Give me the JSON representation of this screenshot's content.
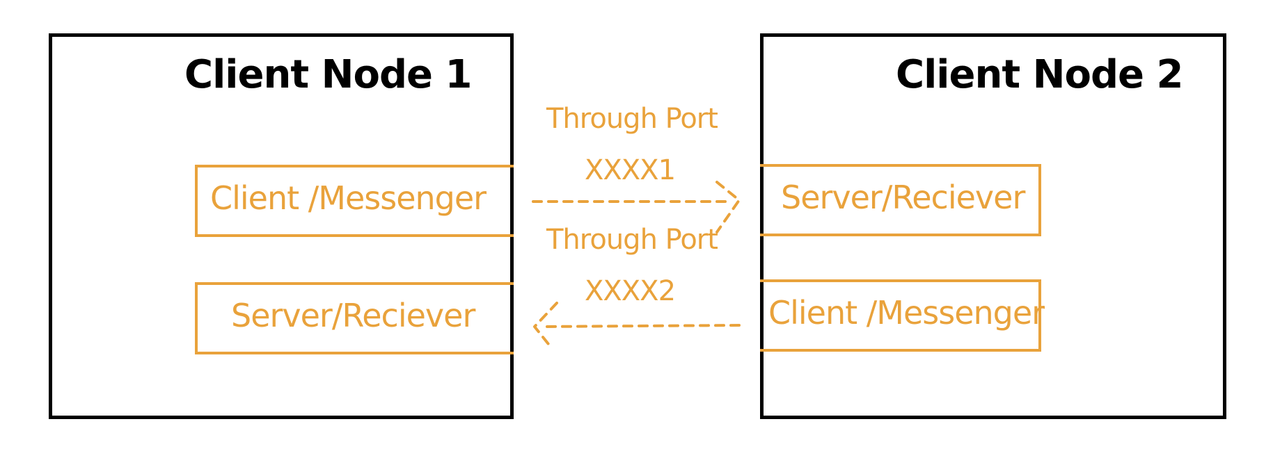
{
  "nodes": [
    {
      "title": "Client Node 1",
      "components": [
        "Client /Messenger",
        "Server/Reciever"
      ]
    },
    {
      "title": "Client Node 2",
      "components": [
        "Server/Reciever",
        "Client /Messenger"
      ]
    }
  ],
  "connections": [
    {
      "label": "Through Port",
      "port": "XXXX1",
      "direction": "node1-to-node2"
    },
    {
      "label": "Through Port",
      "port": "XXXX2",
      "direction": "node2-to-node1"
    }
  ],
  "colors": {
    "node_border": "#000000",
    "component": "#E9A23B"
  }
}
